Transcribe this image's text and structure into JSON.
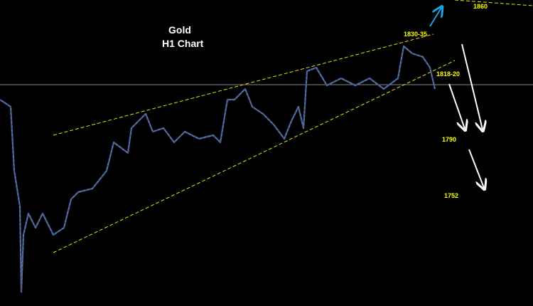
{
  "title": "Gold",
  "subtitle": "H1 Chart",
  "annotations": [
    "1860",
    "1830-35",
    "1818-20",
    "1790",
    "1752"
  ]
}
